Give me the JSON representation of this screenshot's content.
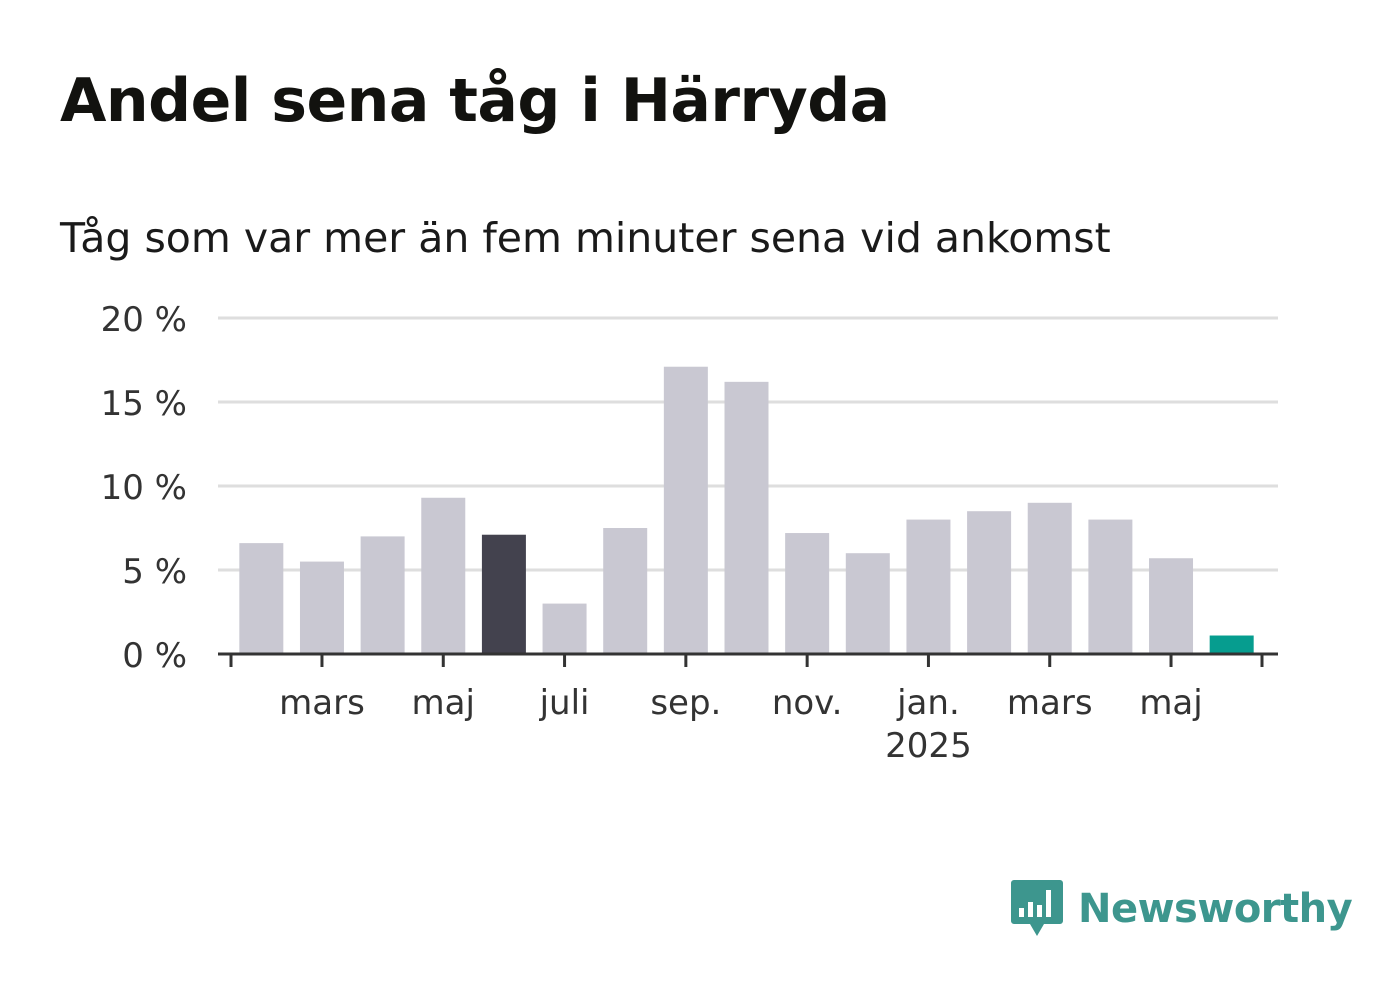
{
  "title": "Andel sena tåg i Härryda",
  "subtitle": "Tåg som var mer än fem minuter sena vid ankomst",
  "logo": {
    "text": "Newsworthy",
    "icon": "bar-chart-speech-bubble-icon",
    "color": "#3d968e"
  },
  "chart_data": {
    "type": "bar",
    "categories": [
      "2024-02",
      "2024-03",
      "2024-04",
      "2024-05",
      "2024-06",
      "2024-07",
      "2024-08",
      "2024-09",
      "2024-10",
      "2024-11",
      "2024-12",
      "2025-01",
      "2025-02",
      "2025-03",
      "2025-04",
      "2025-05",
      "2025-06"
    ],
    "values": [
      6.6,
      5.5,
      7.0,
      9.3,
      7.1,
      3.0,
      7.5,
      17.1,
      16.2,
      7.2,
      6.0,
      8.0,
      8.5,
      9.0,
      8.0,
      5.7,
      1.1
    ],
    "highlight": {
      "dark_index": 4,
      "accent_index": 16
    },
    "colors": {
      "default": "#c9c8d2",
      "dark": "#43424e",
      "accent": "#069d8f",
      "grid": "#dedede",
      "axis": "#333333"
    },
    "ylim": [
      0,
      20
    ],
    "yticks": [
      0,
      5,
      10,
      15,
      20
    ],
    "ytick_labels": [
      "0 %",
      "5 %",
      "10 %",
      "15 %",
      "20 %"
    ],
    "xtick_labels": [
      {
        "category": "2024-03",
        "label": "mars",
        "sub": ""
      },
      {
        "category": "2024-05",
        "label": "maj",
        "sub": ""
      },
      {
        "category": "2024-07",
        "label": "juli",
        "sub": ""
      },
      {
        "category": "2024-09",
        "label": "sep.",
        "sub": ""
      },
      {
        "category": "2024-11",
        "label": "nov.",
        "sub": ""
      },
      {
        "category": "2025-01",
        "label": "jan.",
        "sub": "2025"
      },
      {
        "category": "2025-03",
        "label": "mars",
        "sub": ""
      },
      {
        "category": "2025-05",
        "label": "maj",
        "sub": ""
      }
    ],
    "grid": true,
    "xlabel": "",
    "ylabel": ""
  }
}
